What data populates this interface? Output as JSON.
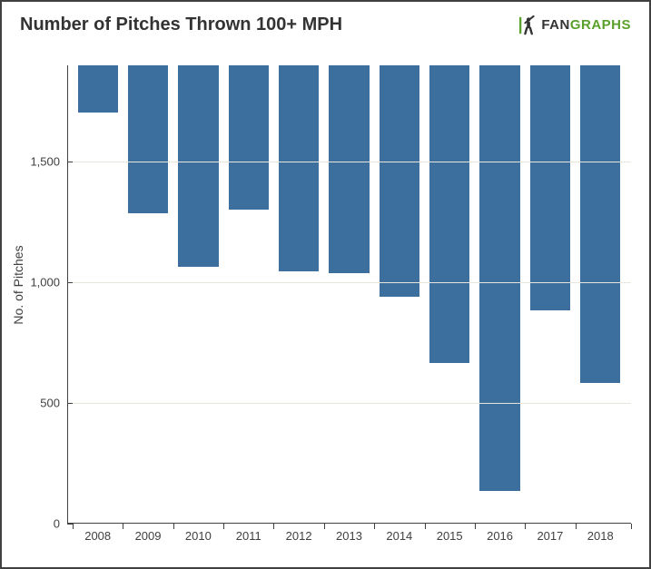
{
  "chart": {
    "type": "bar",
    "title": "Number of Pitches Thrown 100+ MPH",
    "title_fontsize": 20,
    "title_color": "#333333",
    "ylabel": "No. of Pitches",
    "ylabel_fontsize": 14,
    "ylabel_color": "#404040",
    "categories": [
      "2008",
      "2009",
      "2010",
      "2011",
      "2012",
      "2013",
      "2014",
      "2015",
      "2016",
      "2017",
      "2018"
    ],
    "values": [
      195,
      615,
      835,
      600,
      855,
      860,
      960,
      1235,
      1765,
      1015,
      1315
    ],
    "bar_color": "#3c6e9e",
    "bar_width_ratio": 0.8,
    "ymin": 0,
    "ymax": 1900,
    "ytick_step": 500,
    "yticks": [
      0,
      500,
      1000,
      1500
    ],
    "ytick_labels": [
      "0",
      "500",
      "1,000",
      "1,500"
    ],
    "tick_fontsize": 13,
    "tick_color": "#404040",
    "grid_color": "#e8e5de",
    "axis_color": "#404040",
    "background_color": "#ffffff",
    "border_color": "#404040"
  },
  "logo": {
    "fan": "FAN",
    "graphs": "GRAPHS",
    "fontsize": 15,
    "fan_color": "#333333",
    "graphs_color": "#5aa02c"
  }
}
